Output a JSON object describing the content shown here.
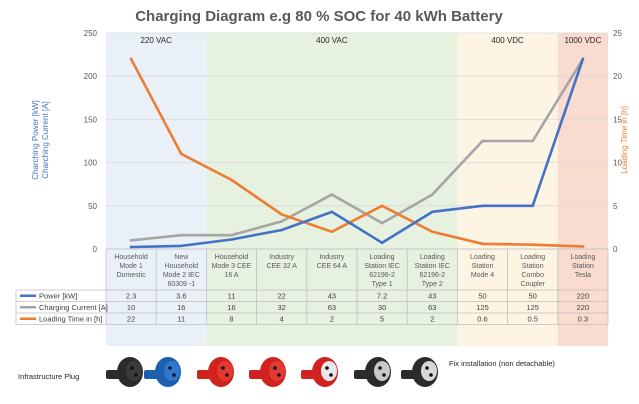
{
  "chart_data": {
    "type": "line",
    "title": "Charging Diagram e.g 80 % SOC for 40 kWh Battery",
    "ylabel_left": [
      "Charching Power [kW]",
      "Charching Current [A]"
    ],
    "ylabel_right": "Loading Time in [h]",
    "ylim_left": [
      0,
      250
    ],
    "ylim_right": [
      0,
      25
    ],
    "yticks_left": [
      "0",
      "50",
      "100",
      "150",
      "200",
      "250"
    ],
    "yticks_right": [
      "0",
      "5",
      "10",
      "15",
      "20",
      "25"
    ],
    "grid": true,
    "categories": [
      [
        "Household",
        "Mode 1",
        "Domestic"
      ],
      [
        "New",
        "Household",
        "Mode 2 IEC",
        "60309 -1"
      ],
      [
        "Household",
        "Mode 3 CEE",
        "16 A"
      ],
      [
        "Industry",
        "CEE 32 A"
      ],
      [
        "Industry",
        "CEE 64 A"
      ],
      [
        "Loading",
        "Station  IEC",
        "62196-2",
        "Type 1"
      ],
      [
        "Loading",
        "Station  IEC",
        "62196-2",
        "Type 2"
      ],
      [
        "Loading",
        "Station",
        "Mode 4"
      ],
      [
        "Loading",
        "Station",
        "Combo",
        "Coupler"
      ],
      [
        "Loading",
        "Station",
        "Tesla"
      ]
    ],
    "series": [
      {
        "name": "Power [kW]",
        "axis": "left",
        "color": "#4472c4",
        "values": [
          2.3,
          3.6,
          11,
          22,
          43,
          7.2,
          43,
          50,
          50,
          220
        ],
        "labels": [
          "2.3",
          "3.6",
          "11",
          "22",
          "43",
          "7.2",
          "43",
          "50",
          "50",
          "220"
        ]
      },
      {
        "name": "Charging Current [A]",
        "axis": "left",
        "color": "#a5a5a5",
        "values": [
          10,
          16,
          16,
          32,
          63,
          30,
          63,
          125,
          125,
          220
        ],
        "labels": [
          "10",
          "16",
          "16",
          "32",
          "63",
          "30",
          "63",
          "125",
          "125",
          "220"
        ]
      },
      {
        "name": "Loading Time in [h]",
        "axis": "right",
        "color": "#ed7d31",
        "values": [
          22,
          11,
          8,
          4,
          2,
          5,
          2,
          0.6,
          0.5,
          0.3
        ],
        "labels": [
          "22",
          "11",
          "8",
          "4",
          "2",
          "5",
          "2",
          "0.6",
          "0.5",
          "0.3"
        ]
      }
    ],
    "bands": [
      {
        "label": "220 VAC",
        "from": 0,
        "to": 2,
        "color": "#eaf0f8"
      },
      {
        "label": "400 VAC",
        "from": 2,
        "to": 7,
        "color": "#e7f1df"
      },
      {
        "label": "400 VDC",
        "from": 7,
        "to": 9,
        "color": "#fdf4e3"
      },
      {
        "label": "1000 VDC",
        "from": 9,
        "to": 10,
        "color": "#fadbd0"
      }
    ]
  },
  "footer": {
    "infrastructure_label": "Infrastructure Plug",
    "fixed_label": "Fix installation (non detachable)"
  }
}
